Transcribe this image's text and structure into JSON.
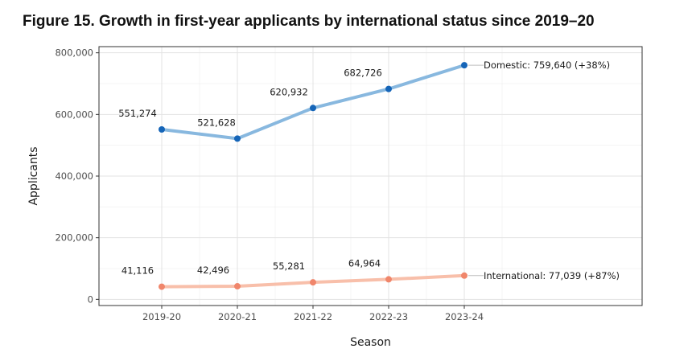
{
  "figure_title": "Figure 15. Growth in first-year applicants by international status since 2019–20",
  "chart_data": {
    "type": "line",
    "title": "Figure 15. Growth in first-year applicants by international status since 2019–20",
    "xlabel": "Season",
    "ylabel": "Applicants",
    "categories": [
      "2019-20",
      "2020-21",
      "2021-22",
      "2022-23",
      "2023-24"
    ],
    "ylim": [
      -20000,
      820000
    ],
    "yticks": [
      0,
      200000,
      400000,
      600000,
      800000
    ],
    "ytick_labels": [
      "0",
      "200,000",
      "400,000",
      "600,000",
      "800,000"
    ],
    "grid": true,
    "legend": "none",
    "series": [
      {
        "name": "Domestic",
        "values": [
          551274,
          521628,
          620932,
          682726,
          759640
        ],
        "value_labels": [
          "551,274",
          "521,628",
          "620,932",
          "682,726"
        ],
        "end_label": "Domestic: 759,640 (+38%)",
        "line_color": "#88b8df",
        "point_color": "#1565b8"
      },
      {
        "name": "International",
        "values": [
          41116,
          42496,
          55281,
          64964,
          77039
        ],
        "value_labels": [
          "41,116",
          "42,496",
          "55,281",
          "64,964"
        ],
        "end_label": "International: 77,039 (+87%)",
        "line_color": "#f8bfaa",
        "point_color": "#f0866b"
      }
    ]
  }
}
